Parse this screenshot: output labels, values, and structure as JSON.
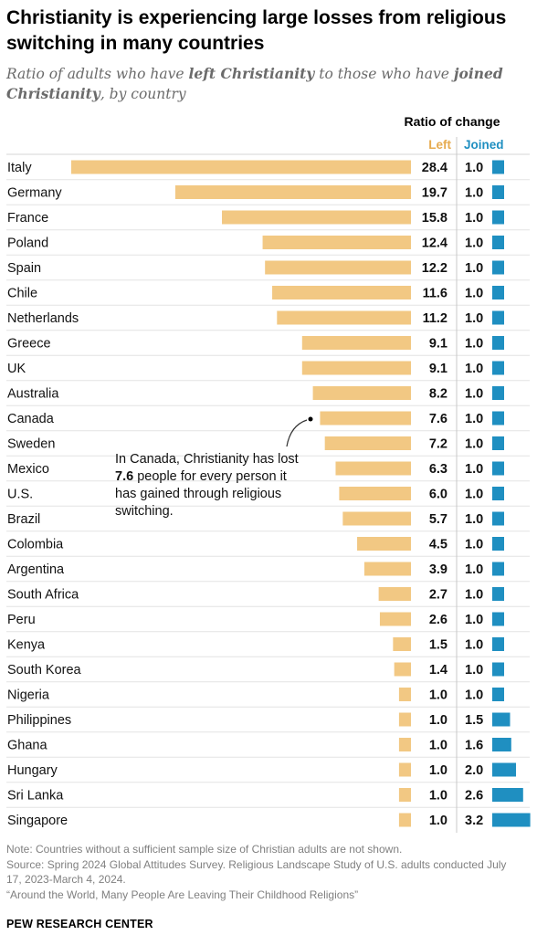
{
  "title": "Christianity is experiencing large losses from religious switching in many countries",
  "subtitle": {
    "part1": "Ratio of adults who have ",
    "bold1": "left Christianity",
    "part2": " to those who have ",
    "bold2": "joined Christianity",
    "part3": ", by country"
  },
  "headers": {
    "ratio": "Ratio of change",
    "left": "Left",
    "joined": "Joined"
  },
  "annotation": {
    "part1": "In Canada, Christianity has lost ",
    "bold": "7.6",
    "part2": " people for every person it has gained through religious switching."
  },
  "colors": {
    "left": "#f2c883",
    "joined": "#1f8fc1",
    "left_header": "#e6ab4f"
  },
  "chart_data": {
    "type": "bar",
    "title": "Christianity is experiencing large losses from religious switching in many countries",
    "categories": [
      "Italy",
      "Germany",
      "France",
      "Poland",
      "Spain",
      "Chile",
      "Netherlands",
      "Greece",
      "UK",
      "Australia",
      "Canada",
      "Sweden",
      "Mexico",
      "U.S.",
      "Brazil",
      "Colombia",
      "Argentina",
      "South Africa",
      "Peru",
      "Kenya",
      "South Korea",
      "Nigeria",
      "Philippines",
      "Ghana",
      "Hungary",
      "Sri Lanka",
      "Singapore"
    ],
    "series": [
      {
        "name": "Left",
        "values": [
          28.4,
          19.7,
          15.8,
          12.4,
          12.2,
          11.6,
          11.2,
          9.1,
          9.1,
          8.2,
          7.6,
          7.2,
          6.3,
          6.0,
          5.7,
          4.5,
          3.9,
          2.7,
          2.6,
          1.5,
          1.4,
          1.0,
          1.0,
          1.0,
          1.0,
          1.0,
          1.0
        ]
      },
      {
        "name": "Joined",
        "values": [
          1.0,
          1.0,
          1.0,
          1.0,
          1.0,
          1.0,
          1.0,
          1.0,
          1.0,
          1.0,
          1.0,
          1.0,
          1.0,
          1.0,
          1.0,
          1.0,
          1.0,
          1.0,
          1.0,
          1.0,
          1.0,
          1.0,
          1.5,
          1.6,
          2.0,
          2.6,
          3.2
        ]
      }
    ],
    "labels_left": [
      "28.4",
      "19.7",
      "15.8",
      "12.4",
      "12.2",
      "11.6",
      "11.2",
      "9.1",
      "9.1",
      "8.2",
      "7.6",
      "7.2",
      "6.3",
      "6.0",
      "5.7",
      "4.5",
      "3.9",
      "2.7",
      "2.6",
      "1.5",
      "1.4",
      "1.0",
      "1.0",
      "1.0",
      "1.0",
      "1.0",
      "1.0"
    ],
    "labels_joined": [
      "1.0",
      "1.0",
      "1.0",
      "1.0",
      "1.0",
      "1.0",
      "1.0",
      "1.0",
      "1.0",
      "1.0",
      "1.0",
      "1.0",
      "1.0",
      "1.0",
      "1.0",
      "1.0",
      "1.0",
      "1.0",
      "1.0",
      "1.0",
      "1.0",
      "1.0",
      "1.5",
      "1.6",
      "2.0",
      "2.6",
      "3.2"
    ],
    "legend": [
      "Left",
      "Joined"
    ]
  },
  "notes": {
    "note": "Note: Countries without a sufficient sample size of Christian adults are not shown.",
    "source": "Source: Spring 2024 Global Attitudes Survey. Religious Landscape Study of U.S. adults conducted July 17, 2023-March 4, 2024.",
    "report": "“Around the World, Many People Are Leaving Their Childhood Religions”"
  },
  "branding": "PEW RESEARCH CENTER"
}
